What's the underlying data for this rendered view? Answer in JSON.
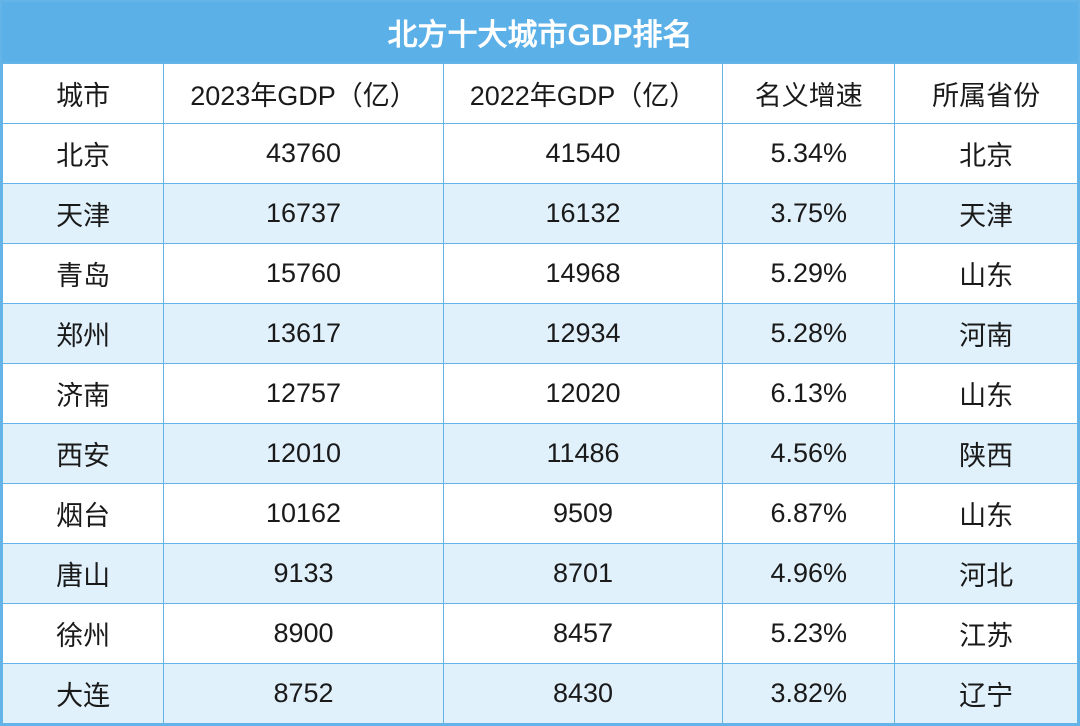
{
  "title": "北方十大城市GDP排名",
  "columns": [
    "城市",
    "2023年GDP（亿）",
    "2022年GDP（亿）",
    "名义增速",
    "所属省份"
  ],
  "rows": [
    [
      "北京",
      "43760",
      "41540",
      "5.34%",
      "北京"
    ],
    [
      "天津",
      "16737",
      "16132",
      "3.75%",
      "天津"
    ],
    [
      "青岛",
      "15760",
      "14968",
      "5.29%",
      "山东"
    ],
    [
      "郑州",
      "13617",
      "12934",
      "5.28%",
      "河南"
    ],
    [
      "济南",
      "12757",
      "12020",
      "6.13%",
      "山东"
    ],
    [
      "西安",
      "12010",
      "11486",
      "4.56%",
      "陕西"
    ],
    [
      "烟台",
      "10162",
      "9509",
      "6.87%",
      "山东"
    ],
    [
      "唐山",
      "9133",
      "8701",
      "4.96%",
      "河北"
    ],
    [
      "徐州",
      "8900",
      "8457",
      "5.23%",
      "江苏"
    ],
    [
      "大连",
      "8752",
      "8430",
      "3.82%",
      "辽宁"
    ]
  ],
  "style": {
    "type": "table",
    "header_bg": "#5bb0e8",
    "header_text_color": "#ffffff",
    "border_color": "#64b4e8",
    "row_bg_odd": "#ffffff",
    "row_bg_even": "#e1f1fb",
    "text_color": "#1a1a1a",
    "title_fontsize": 30,
    "cell_fontsize": 27,
    "col_widths_pct": [
      15,
      26,
      26,
      16,
      17
    ],
    "col_align": [
      "center",
      "center",
      "center",
      "center",
      "center"
    ]
  }
}
